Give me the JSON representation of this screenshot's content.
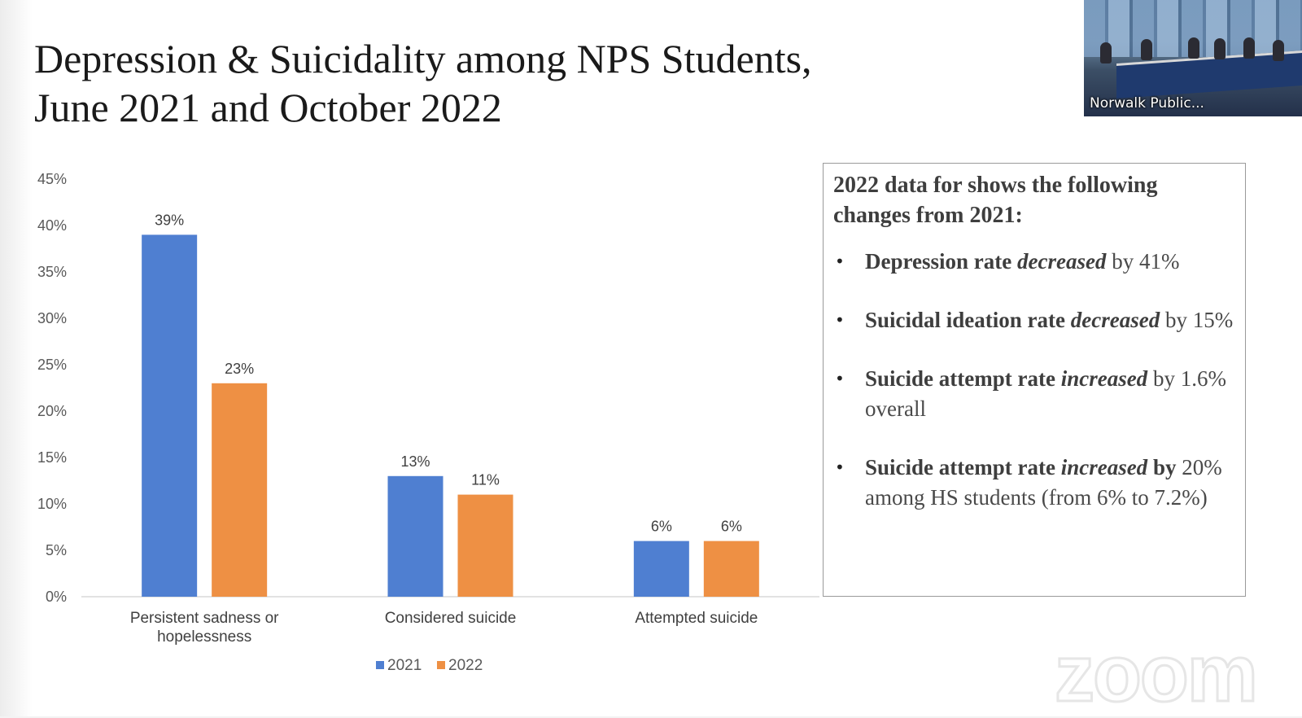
{
  "slide": {
    "title_line1": "Depression & Suicidality among NPS Students,",
    "title_line2": "June 2021 and October 2022"
  },
  "chart_data": {
    "type": "bar",
    "categories": [
      "Persistent sadness or hopelessness",
      "Considered suicide",
      "Attempted suicide"
    ],
    "category_lines": [
      [
        "Persistent sadness or",
        "hopelessness"
      ],
      [
        "Considered suicide"
      ],
      [
        "Attempted suicide"
      ]
    ],
    "series": [
      {
        "name": "2021",
        "values": [
          39,
          13,
          6
        ],
        "labels": [
          "39%",
          "13%",
          "6%"
        ],
        "color": "#4f7fd1"
      },
      {
        "name": "2022",
        "values": [
          23,
          11,
          6
        ],
        "labels": [
          "23%",
          "11%",
          "6%"
        ],
        "color": "#ee9044"
      }
    ],
    "ylim": [
      0,
      45
    ],
    "yticks": [
      "0%",
      "5%",
      "10%",
      "15%",
      "20%",
      "25%",
      "30%",
      "35%",
      "40%",
      "45%"
    ],
    "ytick_values": [
      0,
      5,
      10,
      15,
      20,
      25,
      30,
      35,
      40,
      45
    ],
    "grid": false,
    "legend": "bottom"
  },
  "notes": {
    "heading": "2022 data for shows the following changes from 2021:",
    "items": [
      {
        "b1": "Depression rate ",
        "bi": "decreased",
        "rest": " by 41%"
      },
      {
        "b1": "Suicidal ideation rate ",
        "bi": "decreased",
        "rest": " by 15%"
      },
      {
        "b1": "Suicide attempt rate ",
        "bi": "increased",
        "rest": " by 1.6% overall"
      },
      {
        "b1": "Suicide attempt rate ",
        "bi": "increased",
        "b2": " by",
        "rest": " 20% among HS students (from 6% to 7.2%)"
      }
    ]
  },
  "video": {
    "participant_label": "Norwalk Public..."
  },
  "watermark": {
    "text": "zoom"
  }
}
